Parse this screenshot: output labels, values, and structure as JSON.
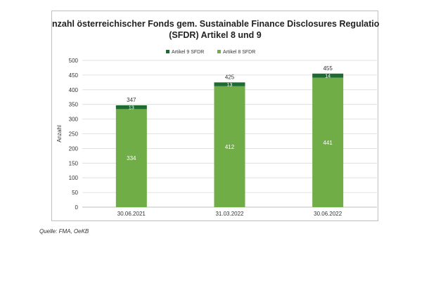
{
  "colors": {
    "artikel9": "#1e6b30",
    "artikel8": "#70ad47",
    "grid": "#d9d9d9"
  },
  "source": "Quelle: FMA, OeKB",
  "chart_data": {
    "type": "bar",
    "stacked": true,
    "title_line1": "Anzahl österreichischer Fonds gem. Sustainable Finance Disclosures Regulation",
    "title_line2": "(SFDR) Artikel 8 und 9",
    "ylabel": "Anzahl",
    "xlabel": "",
    "ylim": [
      0,
      500
    ],
    "yticks": [
      "0",
      "50",
      "100",
      "150",
      "200",
      "250",
      "300",
      "350",
      "400",
      "450",
      "500"
    ],
    "legend_position": "top",
    "grid": true,
    "categories": [
      "30.06.2021",
      "31.03.2022",
      "30.06.2022"
    ],
    "series": [
      {
        "name": "Artikel 9 SFDR",
        "values": [
          13,
          13,
          14
        ],
        "labels": [
          "13",
          "13",
          "14"
        ]
      },
      {
        "name": "Artikel 8 SFDR",
        "values": [
          334,
          412,
          441
        ],
        "labels": [
          "334",
          "412",
          "441"
        ]
      }
    ],
    "totals": [
      "347",
      "425",
      "455"
    ]
  }
}
